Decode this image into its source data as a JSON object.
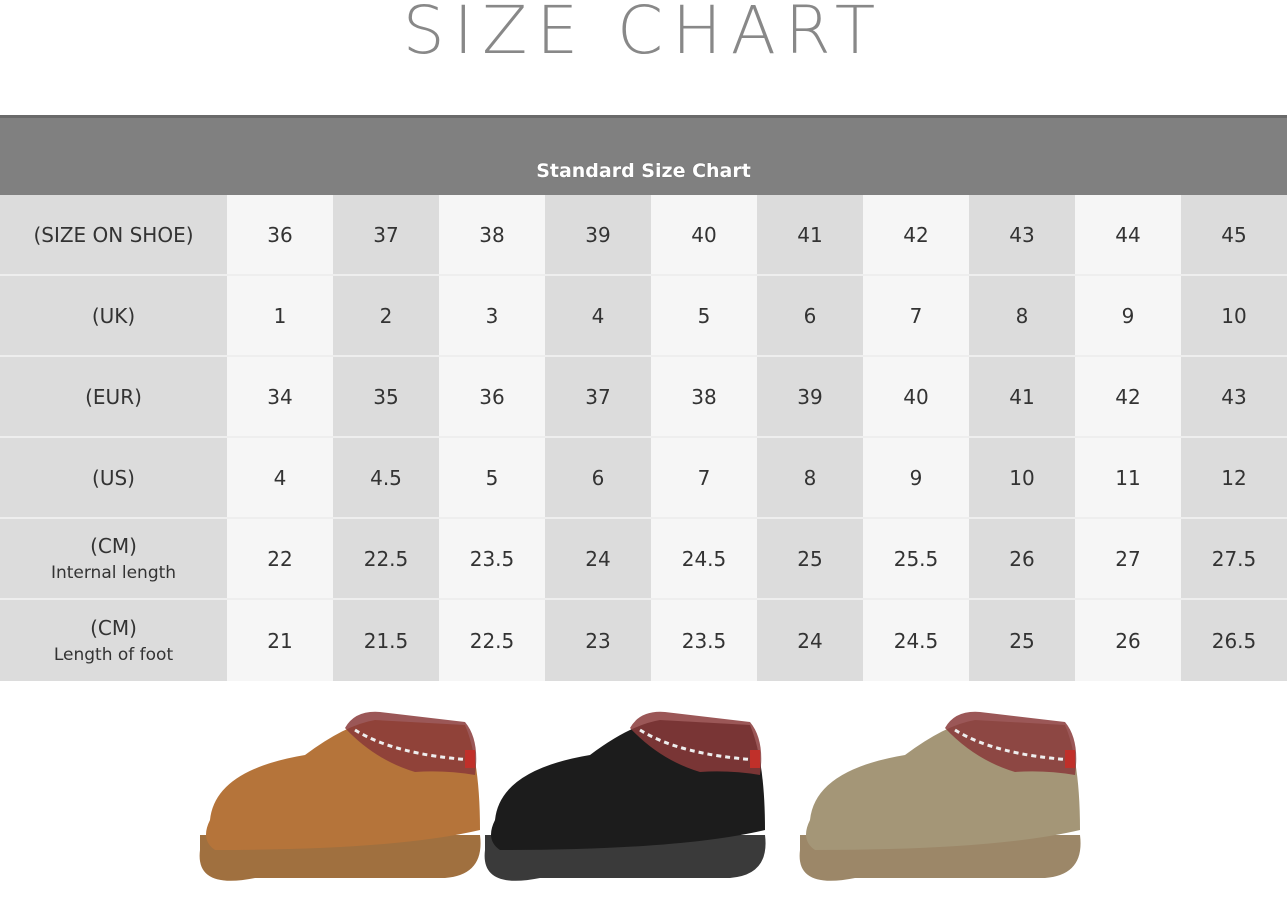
{
  "title": "SIZE CHART",
  "table": {
    "header": "Standard Size Chart",
    "rows": [
      {
        "label": "(SIZE ON SHOE)",
        "sub": "",
        "values": [
          "36",
          "37",
          "38",
          "39",
          "40",
          "41",
          "42",
          "43",
          "44",
          "45"
        ]
      },
      {
        "label": "(UK)",
        "sub": "",
        "values": [
          "1",
          "2",
          "3",
          "4",
          "5",
          "6",
          "7",
          "8",
          "9",
          "10"
        ]
      },
      {
        "label": "(EUR)",
        "sub": "",
        "values": [
          "34",
          "35",
          "36",
          "37",
          "38",
          "39",
          "40",
          "41",
          "42",
          "43"
        ]
      },
      {
        "label": "(US)",
        "sub": "",
        "values": [
          "4",
          "4.5",
          "5",
          "6",
          "7",
          "8",
          "9",
          "10",
          "11",
          "12"
        ]
      },
      {
        "label": "(CM)",
        "sub": "Internal length",
        "values": [
          "22",
          "22.5",
          "23.5",
          "24",
          "24.5",
          "25",
          "25.5",
          "26",
          "27",
          "27.5"
        ]
      },
      {
        "label": "(CM)",
        "sub": "Length of foot",
        "values": [
          "21",
          "21.5",
          "22.5",
          "23",
          "23.5",
          "24",
          "24.5",
          "25",
          "26",
          "26.5"
        ]
      }
    ]
  },
  "products": [
    {
      "color_name": "chestnut",
      "color": "#b5743a",
      "sole": "#a0703f"
    },
    {
      "color_name": "black",
      "color": "#1c1c1c",
      "sole": "#3a3a3a"
    },
    {
      "color_name": "sand",
      "color": "#a49677",
      "sole": "#9c8768"
    }
  ]
}
